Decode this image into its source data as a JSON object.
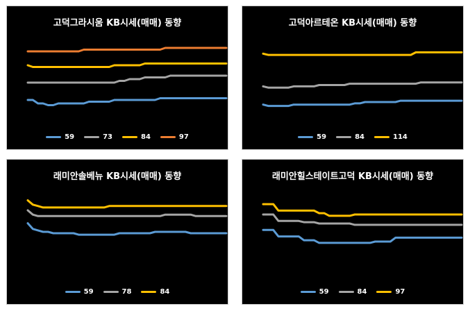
{
  "chart_data": [
    {
      "type": "line",
      "title": "고덕그라시움 KB시세(매매) 동향",
      "series": [
        {
          "name": "59",
          "color": "#5b9bd5",
          "values": [
            8.2,
            8.2,
            8.0,
            8.0,
            7.9,
            7.9,
            8.0,
            8.0,
            8.0,
            8.0,
            8.0,
            8.0,
            8.1,
            8.1,
            8.1,
            8.1,
            8.1,
            8.2,
            8.2,
            8.2,
            8.2,
            8.2,
            8.2,
            8.2,
            8.2,
            8.2,
            8.3,
            8.3,
            8.3,
            8.3,
            8.3,
            8.3,
            8.3,
            8.3,
            8.3,
            8.3,
            8.3,
            8.3,
            8.3,
            8.3
          ]
        },
        {
          "name": "73",
          "color": "#a5a5a5",
          "values": [
            9.2,
            9.2,
            9.2,
            9.2,
            9.2,
            9.2,
            9.2,
            9.2,
            9.2,
            9.2,
            9.2,
            9.2,
            9.2,
            9.2,
            9.2,
            9.2,
            9.2,
            9.2,
            9.3,
            9.3,
            9.4,
            9.4,
            9.4,
            9.5,
            9.5,
            9.5,
            9.5,
            9.5,
            9.6,
            9.6,
            9.6,
            9.6,
            9.6,
            9.6,
            9.6,
            9.6,
            9.6,
            9.6,
            9.6,
            9.6
          ]
        },
        {
          "name": "84",
          "color": "#ffc000",
          "values": [
            10.2,
            10.1,
            10.1,
            10.1,
            10.1,
            10.1,
            10.1,
            10.1,
            10.1,
            10.1,
            10.1,
            10.1,
            10.1,
            10.1,
            10.1,
            10.1,
            10.1,
            10.2,
            10.2,
            10.2,
            10.2,
            10.2,
            10.2,
            10.3,
            10.3,
            10.3,
            10.3,
            10.3,
            10.3,
            10.3,
            10.3,
            10.3,
            10.3,
            10.3,
            10.3,
            10.3,
            10.3,
            10.3,
            10.3,
            10.3
          ]
        },
        {
          "name": "97",
          "color": "#ed7d31",
          "values": [
            11.0,
            11.0,
            11.0,
            11.0,
            11.0,
            11.0,
            11.0,
            11.0,
            11.0,
            11.0,
            11.0,
            11.1,
            11.1,
            11.1,
            11.1,
            11.1,
            11.1,
            11.1,
            11.1,
            11.1,
            11.1,
            11.1,
            11.1,
            11.1,
            11.1,
            11.1,
            11.1,
            11.2,
            11.2,
            11.2,
            11.2,
            11.2,
            11.2,
            11.2,
            11.2,
            11.2,
            11.2,
            11.2,
            11.2,
            11.2
          ]
        }
      ],
      "ylim": [
        6.8,
        12.0
      ],
      "grid": false,
      "legend_position": "bottom"
    },
    {
      "type": "line",
      "title": "고덕아르테온 KB시세(매매) 동향",
      "series": [
        {
          "name": "59",
          "color": "#5b9bd5",
          "values": [
            7.1,
            7.0,
            7.0,
            7.0,
            7.0,
            7.0,
            7.1,
            7.1,
            7.1,
            7.1,
            7.1,
            7.1,
            7.1,
            7.1,
            7.1,
            7.1,
            7.1,
            7.1,
            7.2,
            7.2,
            7.3,
            7.3,
            7.3,
            7.3,
            7.3,
            7.3,
            7.3,
            7.4,
            7.4,
            7.4,
            7.4,
            7.4,
            7.4,
            7.4,
            7.4,
            7.4,
            7.4,
            7.4,
            7.4,
            7.4
          ]
        },
        {
          "name": "84",
          "color": "#a5a5a5",
          "values": [
            8.5,
            8.4,
            8.4,
            8.4,
            8.4,
            8.4,
            8.5,
            8.5,
            8.5,
            8.5,
            8.5,
            8.6,
            8.6,
            8.6,
            8.6,
            8.6,
            8.6,
            8.7,
            8.7,
            8.7,
            8.7,
            8.7,
            8.7,
            8.7,
            8.7,
            8.7,
            8.7,
            8.7,
            8.7,
            8.7,
            8.7,
            8.8,
            8.8,
            8.8,
            8.8,
            8.8,
            8.8,
            8.8,
            8.8,
            8.8
          ]
        },
        {
          "name": "114",
          "color": "#ffc000",
          "values": [
            11.0,
            10.9,
            10.9,
            10.9,
            10.9,
            10.9,
            10.9,
            10.9,
            10.9,
            10.9,
            10.9,
            10.9,
            10.9,
            10.9,
            10.9,
            10.9,
            10.9,
            10.9,
            10.9,
            10.9,
            10.9,
            10.9,
            10.9,
            10.9,
            10.9,
            10.9,
            10.9,
            10.9,
            10.9,
            10.9,
            11.1,
            11.1,
            11.1,
            11.1,
            11.1,
            11.1,
            11.1,
            11.1,
            11.1,
            11.1
          ]
        }
      ],
      "ylim": [
        5.6,
        12.5
      ],
      "grid": false,
      "legend_position": "bottom"
    },
    {
      "type": "line",
      "title": "래미안솔베뉴 KB시세(매매) 동향",
      "series": [
        {
          "name": "59",
          "color": "#5b9bd5",
          "values": [
            7.1,
            6.7,
            6.6,
            6.5,
            6.5,
            6.4,
            6.4,
            6.4,
            6.4,
            6.4,
            6.3,
            6.3,
            6.3,
            6.3,
            6.3,
            6.3,
            6.3,
            6.3,
            6.4,
            6.4,
            6.4,
            6.4,
            6.4,
            6.4,
            6.4,
            6.5,
            6.5,
            6.5,
            6.5,
            6.5,
            6.5,
            6.5,
            6.4,
            6.4,
            6.4,
            6.4,
            6.4,
            6.4,
            6.4,
            6.4
          ]
        },
        {
          "name": "78",
          "color": "#a5a5a5",
          "values": [
            8.0,
            7.7,
            7.6,
            7.6,
            7.6,
            7.6,
            7.6,
            7.6,
            7.6,
            7.6,
            7.6,
            7.6,
            7.6,
            7.6,
            7.6,
            7.6,
            7.6,
            7.6,
            7.6,
            7.6,
            7.6,
            7.6,
            7.6,
            7.6,
            7.6,
            7.6,
            7.6,
            7.7,
            7.7,
            7.7,
            7.7,
            7.7,
            7.7,
            7.6,
            7.6,
            7.6,
            7.6,
            7.6,
            7.6,
            7.6
          ]
        },
        {
          "name": "84",
          "color": "#ffc000",
          "values": [
            8.7,
            8.4,
            8.3,
            8.2,
            8.2,
            8.2,
            8.2,
            8.2,
            8.2,
            8.2,
            8.2,
            8.2,
            8.2,
            8.2,
            8.2,
            8.2,
            8.3,
            8.3,
            8.3,
            8.3,
            8.3,
            8.3,
            8.3,
            8.3,
            8.3,
            8.3,
            8.3,
            8.3,
            8.3,
            8.3,
            8.3,
            8.3,
            8.3,
            8.3,
            8.3,
            8.3,
            8.3,
            8.3,
            8.3,
            8.3
          ]
        }
      ],
      "ylim": [
        3.3,
        9.6
      ],
      "grid": false,
      "legend_position": "bottom"
    },
    {
      "type": "line",
      "title": "래미안힐스테이트고덕 KB시세(매매) 동향",
      "series": [
        {
          "name": "59",
          "color": "#5b9bd5",
          "values": [
            7.3,
            7.3,
            7.3,
            6.8,
            6.8,
            6.8,
            6.8,
            6.8,
            6.5,
            6.5,
            6.5,
            6.3,
            6.3,
            6.3,
            6.3,
            6.3,
            6.3,
            6.3,
            6.3,
            6.3,
            6.3,
            6.3,
            6.4,
            6.4,
            6.4,
            6.4,
            6.7,
            6.7,
            6.7,
            6.7,
            6.7,
            6.7,
            6.7,
            6.7,
            6.7,
            6.7,
            6.7,
            6.7,
            6.7,
            6.7
          ]
        },
        {
          "name": "84",
          "color": "#a5a5a5",
          "values": [
            8.5,
            8.5,
            8.5,
            8.0,
            8.0,
            8.0,
            8.0,
            8.0,
            7.9,
            7.9,
            7.9,
            7.8,
            7.8,
            7.8,
            7.8,
            7.8,
            7.8,
            7.8,
            7.7,
            7.7,
            7.7,
            7.7,
            7.7,
            7.7,
            7.7,
            7.7,
            7.7,
            7.7,
            7.7,
            7.7,
            7.7,
            7.7,
            7.7,
            7.7,
            7.7,
            7.7,
            7.7,
            7.7,
            7.7,
            7.7
          ]
        },
        {
          "name": "97",
          "color": "#ffc000",
          "values": [
            9.3,
            9.3,
            9.3,
            8.8,
            8.8,
            8.8,
            8.8,
            8.8,
            8.8,
            8.8,
            8.8,
            8.6,
            8.6,
            8.4,
            8.4,
            8.4,
            8.4,
            8.4,
            8.5,
            8.5,
            8.5,
            8.5,
            8.5,
            8.5,
            8.5,
            8.5,
            8.5,
            8.5,
            8.5,
            8.5,
            8.5,
            8.5,
            8.5,
            8.5,
            8.5,
            8.5,
            8.5,
            8.5,
            8.5,
            8.5
          ]
        }
      ],
      "ylim": [
        3.6,
        10.6
      ],
      "grid": false,
      "legend_position": "bottom"
    }
  ]
}
